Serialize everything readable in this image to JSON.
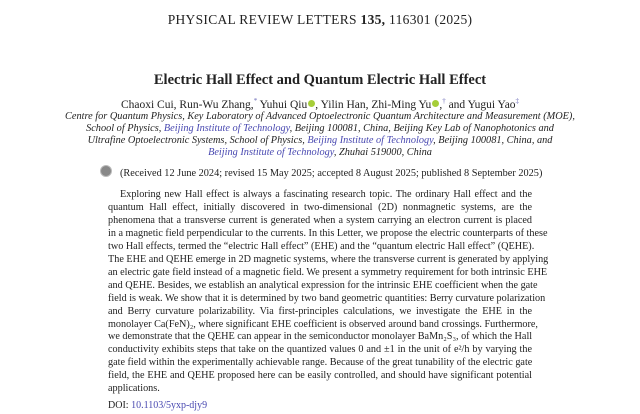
{
  "header": {
    "journal": "PHYSICAL REVIEW LETTERS",
    "volume": "135,",
    "article": "116301 (2025)"
  },
  "title": "Electric Hall Effect and Quantum Electric Hall Effect",
  "authors": [
    {
      "name": "Chaoxi Cui,",
      "mark": ""
    },
    {
      "name": "Run-Wu Zhang,",
      "mark": "*"
    },
    {
      "name": "Yuhui Qiu",
      "mark": "",
      "orcid": true
    },
    {
      "name": ", Yilin Han, Zhi-Ming Yu",
      "mark": "",
      "orcid": true
    },
    {
      "name": ",",
      "mark": "†"
    },
    {
      "name": "and Yugui Yao",
      "mark": "‡"
    }
  ],
  "affiliation": {
    "l1": "Centre for Quantum Physics, Key Laboratory of Advanced Optoelectronic Quantum Architecture and Measurement (MOE),",
    "l2a": "School of Physics, ",
    "l2link": "Beijing Institute of Technology",
    "l2b": ", Beijing 100081, China, Beijing Key Lab of Nanophotonics and",
    "l3a": "Ultrafine Optoelectronic Systems, School of Physics, ",
    "l3link": "Beijing Institute of Technology",
    "l3b": ", Beijing 100081, China, and",
    "l4link": "Beijing Institute of Technology",
    "l4b": ", Zhuhai 519000, China"
  },
  "received": "(Received 12 June 2024; revised 15 May 2025; accepted 8 August 2025; published 8 September 2025)",
  "abstract_lines": [
    "Exploring new Hall effect is always a fascinating research topic. The ordinary Hall effect and the",
    "quantum Hall effect, initially discovered in two-dimensional (2D) nonmagnetic systems, are the",
    "phenomena that a transverse current is generated when a system carrying an electron current is placed",
    "in a magnetic field perpendicular to the currents. In this Letter, we propose the electric counterparts of these",
    "two Hall effects, termed the “electric Hall effect” (EHE) and the “quantum electric Hall effect” (QEHE).",
    "The EHE and QEHE emerge in 2D magnetic systems, where the transverse current is generated by applying",
    "an electric gate field instead of a magnetic field. We present a symmetry requirement for both intrinsic EHE",
    "and QEHE. Besides, we establish an analytical expression for the intrinsic EHE coefficient when the gate",
    "field is weak. We show that it is determined by two band geometric quantities: Berry curvature polarization",
    "and Berry curvature polarizability. Via first-principles calculations, we investigate the EHE in the",
    "monolayer Ca(FeN)₂, where significant EHE coefficient is observed around band crossings. Furthermore,",
    "we demonstrate that the QEHE can appear in the semiconductor monolayer BaMn₂S₃, of which the Hall",
    "conductivity exhibits steps that take on the quantized values 0 and ±1 in the unit of e²/h by varying the",
    "gate field within the experimentally achievable range. Because of the great tunability of the electric gate",
    "field, the EHE and QEHE proposed here can be easily controlled, and should have significant potential",
    "applications."
  ],
  "doi": {
    "label": "DOI:",
    "value": "10.1103/5yxp-djy9"
  },
  "colors": {
    "link": "#4848b0",
    "orcid": "#a6ce39"
  }
}
